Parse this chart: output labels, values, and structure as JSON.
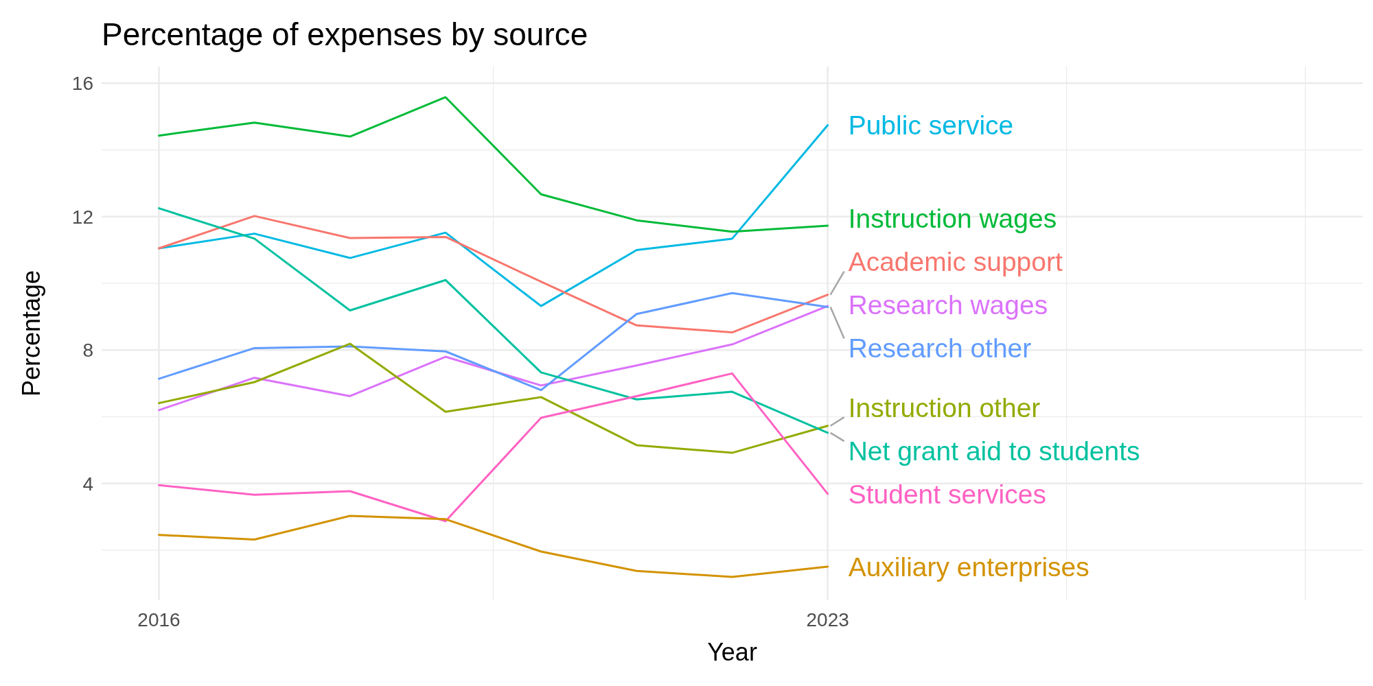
{
  "chart_data": {
    "type": "line",
    "title": "Percentage of expenses by source",
    "xlabel": "Year",
    "ylabel": "Percentage",
    "x": [
      2016,
      2017,
      2018,
      2019,
      2020,
      2021,
      2022,
      2023
    ],
    "xlim": [
      2015.4,
      2028.6
    ],
    "xticks": [
      2016,
      {
        "value": 2019.5,
        "label": null
      },
      2023,
      {
        "value": 2025.5,
        "label": null
      },
      {
        "value": 2028,
        "label": null
      }
    ],
    "ylim": [
      0.5,
      16.5
    ],
    "yticks": [
      {
        "value": 2,
        "label": null
      },
      4,
      {
        "value": 6,
        "label": null
      },
      8,
      {
        "value": 10,
        "label": null
      },
      12,
      {
        "value": 14,
        "label": null
      },
      16
    ],
    "grid": true,
    "legend": false,
    "line_style": "solid",
    "marker": "none",
    "series": [
      {
        "name": "Public service",
        "color": "#00b9e3",
        "values": [
          11.05,
          11.49,
          10.76,
          11.52,
          9.32,
          11.0,
          11.34,
          14.74
        ]
      },
      {
        "name": "Instruction wages",
        "color": "#00ba38",
        "values": [
          14.43,
          14.82,
          14.4,
          15.58,
          12.67,
          11.89,
          11.55,
          11.73
        ]
      },
      {
        "name": "Academic support",
        "color": "#f8766d",
        "values": [
          11.05,
          12.02,
          11.36,
          11.39,
          10.05,
          8.74,
          8.53,
          9.66
        ]
      },
      {
        "name": "Research wages",
        "color": "#db72fb",
        "values": [
          6.2,
          7.17,
          6.62,
          7.8,
          6.94,
          7.54,
          8.17,
          9.32
        ]
      },
      {
        "name": "Research other",
        "color": "#619cff",
        "values": [
          7.14,
          8.06,
          8.11,
          7.96,
          6.8,
          9.08,
          9.71,
          9.29
        ]
      },
      {
        "name": "Instruction other",
        "color": "#93aa00",
        "values": [
          6.41,
          7.04,
          8.19,
          6.15,
          6.59,
          5.15,
          4.92,
          5.73
        ]
      },
      {
        "name": "Net grant aid to students",
        "color": "#00c19f",
        "values": [
          12.25,
          11.34,
          9.19,
          10.1,
          7.33,
          6.52,
          6.75,
          5.52
        ]
      },
      {
        "name": "Student services",
        "color": "#ff61c3",
        "values": [
          3.95,
          3.66,
          3.77,
          2.87,
          5.97,
          6.62,
          7.3,
          3.69
        ]
      },
      {
        "name": "Auxiliary enterprises",
        "color": "#d39200",
        "values": [
          2.46,
          2.32,
          3.03,
          2.93,
          1.96,
          1.38,
          1.2,
          1.51
        ]
      }
    ]
  }
}
